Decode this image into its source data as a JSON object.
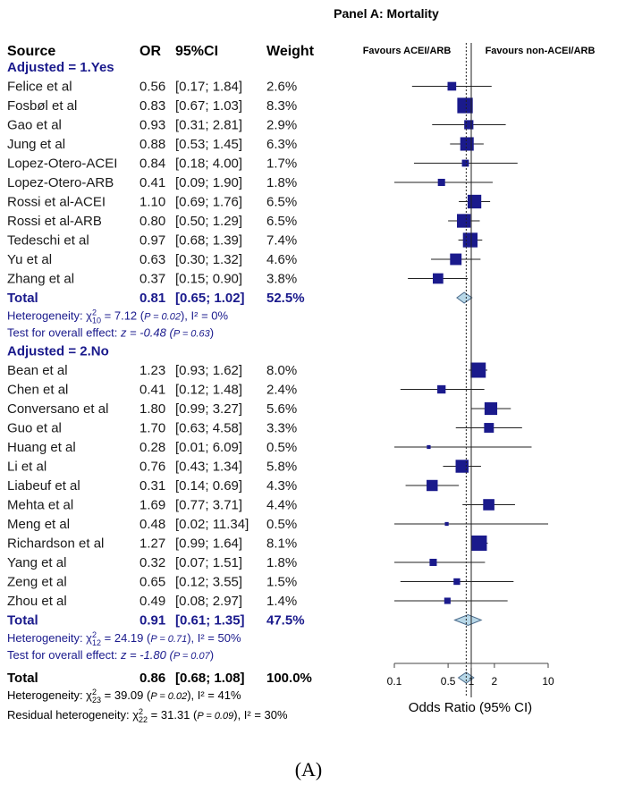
{
  "panel_title": "Panel A: Mortality",
  "caption": "(A)",
  "chart_data": {
    "type": "forest",
    "xscale": "log",
    "xlim": [
      0.1,
      10
    ],
    "xticks": [
      0.1,
      0.5,
      1,
      2,
      10
    ],
    "xtick_labels": [
      "0.1",
      "0.5",
      "1",
      "2",
      "10"
    ],
    "xlabel": "Odds Ratio (95% CI)",
    "reference_line": 1,
    "overall_line": 0.86,
    "favours_left": "Favours ACEI/ARB",
    "favours_right": "Favours non-ACEI/ARB",
    "columns": [
      "Source",
      "OR",
      "95%CI",
      "Weight"
    ],
    "groups": [
      {
        "label": "Adjusted = 1.Yes",
        "studies": [
          {
            "name": "Felice et al",
            "or": "0.56",
            "ci": "[0.17;  1.84]",
            "w": "2.6%",
            "v": 0.56,
            "lo": 0.17,
            "hi": 1.84,
            "wt": 2.6
          },
          {
            "name": "Fosbøl et al",
            "or": "0.83",
            "ci": "[0.67;  1.03]",
            "w": "8.3%",
            "v": 0.83,
            "lo": 0.67,
            "hi": 1.03,
            "wt": 8.3
          },
          {
            "name": "Gao et al",
            "or": "0.93",
            "ci": "[0.31;  2.81]",
            "w": "2.9%",
            "v": 0.93,
            "lo": 0.31,
            "hi": 2.81,
            "wt": 2.9
          },
          {
            "name": "Jung et al",
            "or": "0.88",
            "ci": "[0.53;  1.45]",
            "w": "6.3%",
            "v": 0.88,
            "lo": 0.53,
            "hi": 1.45,
            "wt": 6.3
          },
          {
            "name": "Lopez-Otero-ACEI",
            "or": "0.84",
            "ci": "[0.18;  4.00]",
            "w": "1.7%",
            "v": 0.84,
            "lo": 0.18,
            "hi": 4.0,
            "wt": 1.7
          },
          {
            "name": "Lopez-Otero-ARB",
            "or": "0.41",
            "ci": "[0.09;  1.90]",
            "w": "1.8%",
            "v": 0.41,
            "lo": 0.09,
            "hi": 1.9,
            "wt": 1.8
          },
          {
            "name": "Rossi et al-ACEI",
            "or": "1.10",
            "ci": "[0.69;  1.76]",
            "w": "6.5%",
            "v": 1.1,
            "lo": 0.69,
            "hi": 1.76,
            "wt": 6.5
          },
          {
            "name": "Rossi et al-ARB",
            "or": "0.80",
            "ci": "[0.50;  1.29]",
            "w": "6.5%",
            "v": 0.8,
            "lo": 0.5,
            "hi": 1.29,
            "wt": 6.5
          },
          {
            "name": "Tedeschi et al",
            "or": "0.97",
            "ci": "[0.68;  1.39]",
            "w": "7.4%",
            "v": 0.97,
            "lo": 0.68,
            "hi": 1.39,
            "wt": 7.4
          },
          {
            "name": "Yu et al",
            "or": "0.63",
            "ci": "[0.30;  1.32]",
            "w": "4.6%",
            "v": 0.63,
            "lo": 0.3,
            "hi": 1.32,
            "wt": 4.6
          },
          {
            "name": "Zhang et al",
            "or": "0.37",
            "ci": "[0.15;  0.90]",
            "w": "3.8%",
            "v": 0.37,
            "lo": 0.15,
            "hi": 0.9,
            "wt": 3.8
          }
        ],
        "total": {
          "name": "Total",
          "or": "0.81",
          "ci": "[0.65;  1.02]",
          "w": "52.5%",
          "v": 0.81,
          "lo": 0.65,
          "hi": 1.02
        },
        "het_prefix": "Heterogeneity: χ",
        "het_sub": "10",
        "het_sup": "2",
        "het_value": " = 7.12 (",
        "het_p": "P = 0.02",
        "het_i2": "), I² = 0%",
        "test_prefix": "Test for overall effect: ",
        "test_z": "z = -0.48 (",
        "test_p": "P = 0.63",
        "test_close": ")"
      },
      {
        "label": "Adjusted = 2.No",
        "studies": [
          {
            "name": "Bean et al",
            "or": "1.23",
            "ci": "[0.93;  1.62]",
            "w": "8.0%",
            "v": 1.23,
            "lo": 0.93,
            "hi": 1.62,
            "wt": 8.0
          },
          {
            "name": "Chen et al",
            "or": "0.41",
            "ci": "[0.12;  1.48]",
            "w": "2.4%",
            "v": 0.41,
            "lo": 0.12,
            "hi": 1.48,
            "wt": 2.4
          },
          {
            "name": "Conversano et al",
            "or": "1.80",
            "ci": "[0.99;  3.27]",
            "w": "5.6%",
            "v": 1.8,
            "lo": 0.99,
            "hi": 3.27,
            "wt": 5.6
          },
          {
            "name": "Guo et al",
            "or": "1.70",
            "ci": "[0.63;  4.58]",
            "w": "3.3%",
            "v": 1.7,
            "lo": 0.63,
            "hi": 4.58,
            "wt": 3.3
          },
          {
            "name": "Huang et al",
            "or": "0.28",
            "ci": "[0.01;  6.09]",
            "w": "0.5%",
            "v": 0.28,
            "lo": 0.01,
            "hi": 6.09,
            "wt": 0.5
          },
          {
            "name": "Li et al",
            "or": "0.76",
            "ci": "[0.43;  1.34]",
            "w": "5.8%",
            "v": 0.76,
            "lo": 0.43,
            "hi": 1.34,
            "wt": 5.8
          },
          {
            "name": "Liabeuf et al",
            "or": "0.31",
            "ci": "[0.14;  0.69]",
            "w": "4.3%",
            "v": 0.31,
            "lo": 0.14,
            "hi": 0.69,
            "wt": 4.3
          },
          {
            "name": "Mehta et al",
            "or": "1.69",
            "ci": "[0.77;  3.71]",
            "w": "4.4%",
            "v": 1.69,
            "lo": 0.77,
            "hi": 3.71,
            "wt": 4.4
          },
          {
            "name": "Meng et al",
            "or": "0.48",
            "ci": "[0.02; 11.34]",
            "w": "0.5%",
            "v": 0.48,
            "lo": 0.02,
            "hi": 11.34,
            "wt": 0.5
          },
          {
            "name": "Richardson et al",
            "or": "1.27",
            "ci": "[0.99;  1.64]",
            "w": "8.1%",
            "v": 1.27,
            "lo": 0.99,
            "hi": 1.64,
            "wt": 8.1
          },
          {
            "name": "Yang et al",
            "or": "0.32",
            "ci": "[0.07;  1.51]",
            "w": "1.8%",
            "v": 0.32,
            "lo": 0.07,
            "hi": 1.51,
            "wt": 1.8
          },
          {
            "name": "Zeng et al",
            "or": "0.65",
            "ci": "[0.12;  3.55]",
            "w": "1.5%",
            "v": 0.65,
            "lo": 0.12,
            "hi": 3.55,
            "wt": 1.5
          },
          {
            "name": "Zhou et al",
            "or": "0.49",
            "ci": "[0.08;  2.97]",
            "w": "1.4%",
            "v": 0.49,
            "lo": 0.08,
            "hi": 2.97,
            "wt": 1.4
          }
        ],
        "total": {
          "name": "Total",
          "or": "0.91",
          "ci": "[0.61;  1.35]",
          "w": "47.5%",
          "v": 0.91,
          "lo": 0.61,
          "hi": 1.35
        },
        "het_prefix": "Heterogeneity: χ",
        "het_sub": "12",
        "het_sup": "2",
        "het_value": " = 24.19 (",
        "het_p": "P = 0.71",
        "het_i2": "), I² = 50%",
        "test_prefix": "Test for overall effect: ",
        "test_z": "z = -1.80 (",
        "test_p": "P = 0.07",
        "test_close": ")"
      }
    ],
    "overall": {
      "name": "Total",
      "or": "0.86",
      "ci": "[0.68;  1.08]",
      "w": "100.0%",
      "v": 0.86,
      "lo": 0.68,
      "hi": 1.08
    },
    "overall_het": {
      "prefix": "Heterogeneity: χ",
      "sub": "23",
      "sup": "2",
      "value": " = 39.09 (",
      "p": "P = 0.02",
      "i2": "), I² = 41%"
    },
    "residual_het": {
      "prefix": "Residual heterogeneity: χ",
      "sub": "22",
      "sup": "2",
      "value": " = 31.31 (",
      "p": "P = 0.09",
      "i2": "), I² = 30%"
    }
  },
  "colors": {
    "square": "#1a1a8c",
    "diamond_fill": "#b8d8e8",
    "diamond_stroke": "#4a6a8a",
    "group_text": "#1a1a8c"
  }
}
